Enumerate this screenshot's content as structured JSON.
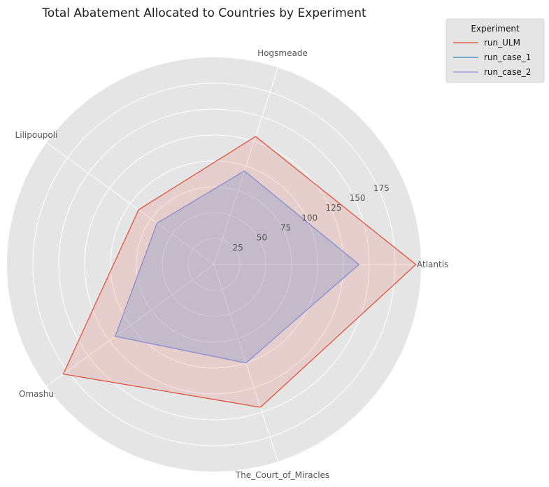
{
  "chart_data": {
    "type": "radar",
    "title": "Total Abatement Allocated to Countries by Experiment",
    "categories": [
      "Atlantis",
      "Hogsmeade",
      "Lilipoupoli",
      "Omashu",
      "The_Court_of_Miracles"
    ],
    "series": [
      {
        "name": "run_ULM",
        "values": [
          195,
          130,
          90,
          180,
          145
        ],
        "color": "#e24a33"
      },
      {
        "name": "run_case_1",
        "values": [
          140,
          95,
          68,
          118,
          100
        ],
        "color": "#348abd"
      },
      {
        "name": "run_case_2",
        "values": [
          140,
          95,
          68,
          118,
          100
        ],
        "color": "#988ed5"
      }
    ],
    "radial_ticks": [
      25,
      50,
      75,
      100,
      125,
      150,
      175
    ],
    "rmax": 200,
    "legend": {
      "title": "Experiment",
      "placement": "upper-right"
    },
    "grid": true,
    "background": "#e5e5e5",
    "grid_color": "#ffffff"
  }
}
